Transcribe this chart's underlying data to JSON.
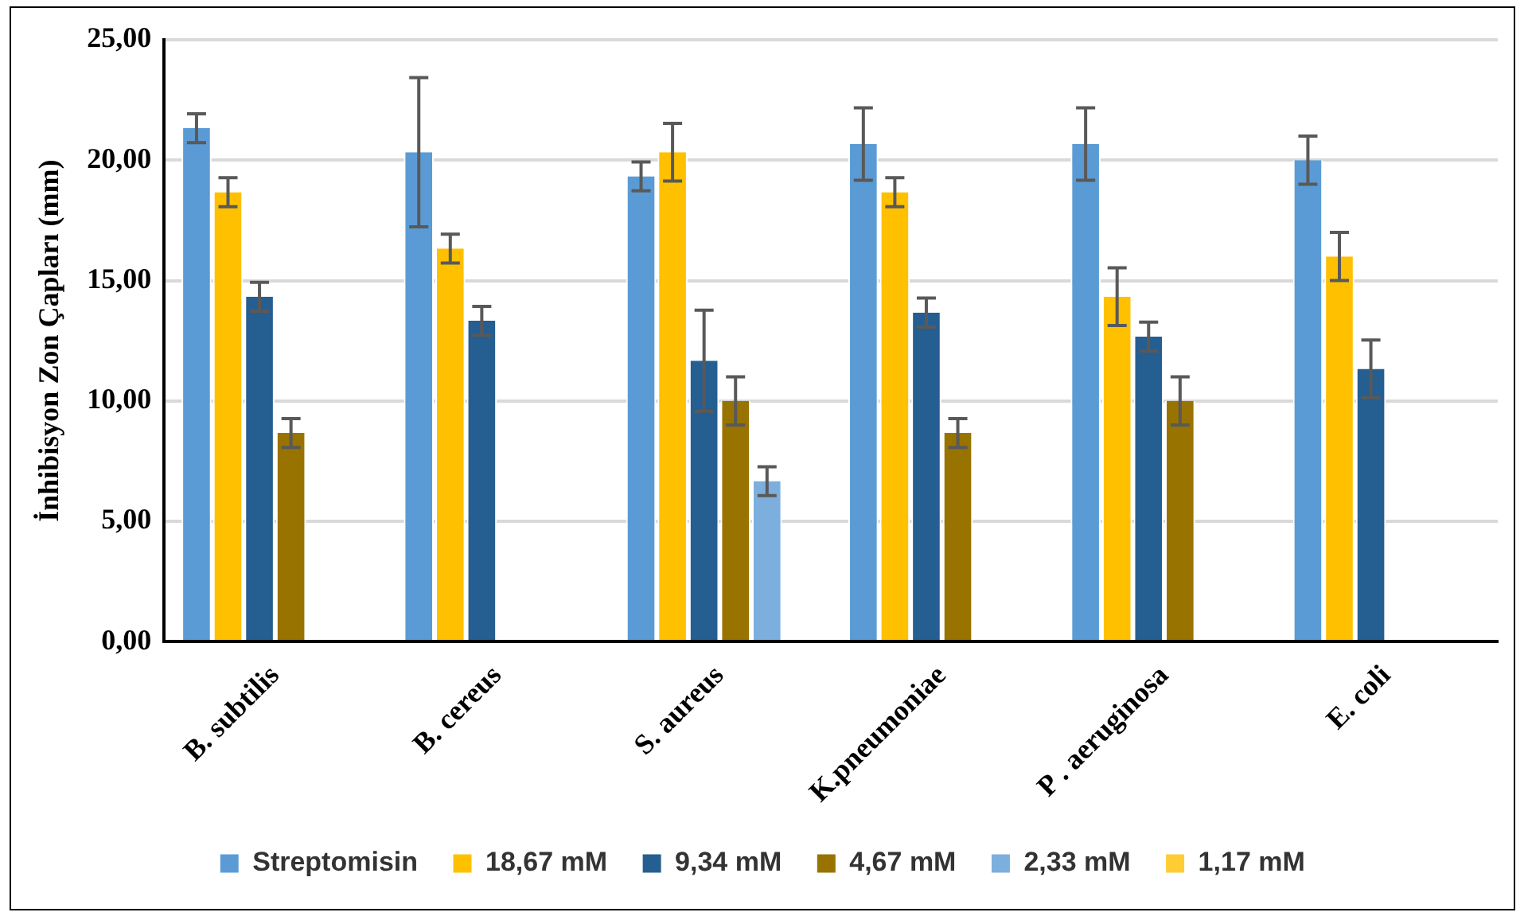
{
  "chart_data": {
    "type": "bar",
    "ylabel": "İnhibisyon Zon Çapları (mm)",
    "categories": [
      "B. subtilis",
      "B. cereus",
      "S. aureus",
      "K.pneumoniae",
      "P . aeruginosa",
      "E. coli"
    ],
    "series": [
      {
        "name": "Streptomisin",
        "color": "#5b9bd5",
        "values": [
          21.33,
          20.33,
          19.33,
          20.67,
          20.67,
          20
        ],
        "errors": [
          0.6,
          3.1,
          0.6,
          1.5,
          1.5,
          1
        ]
      },
      {
        "name": "18,67 mM",
        "color": "#ffc000",
        "values": [
          18.67,
          16.33,
          20.33,
          18.67,
          14.33,
          16
        ],
        "errors": [
          0.6,
          0.6,
          1.2,
          0.6,
          1.2,
          1
        ]
      },
      {
        "name": "9,34 mM",
        "color": "#255e91",
        "values": [
          14.33,
          13.33,
          11.67,
          13.67,
          12.67,
          11.33
        ],
        "errors": [
          0.6,
          0.6,
          2.1,
          0.6,
          0.6,
          1.2
        ]
      },
      {
        "name": "4,67 mM",
        "color": "#997300",
        "values": [
          8.67,
          0,
          10,
          8.67,
          10,
          0
        ],
        "errors": [
          0.6,
          null,
          1,
          0.6,
          1,
          null
        ]
      },
      {
        "name": "2,33 mM",
        "color": "#7cafdd",
        "values": [
          0,
          0,
          6.67,
          0,
          0,
          0
        ],
        "errors": [
          null,
          null,
          0.6,
          null,
          null,
          null
        ]
      },
      {
        "name": "1,17 mM",
        "color": "#ffcd33",
        "values": [
          0,
          0,
          0,
          0,
          0,
          0
        ]
      }
    ],
    "ylim": [
      0,
      25
    ],
    "yticks": [
      {
        "value": 0,
        "label": "0,00"
      },
      {
        "value": 5,
        "label": "5,00"
      },
      {
        "value": 10,
        "label": "10,00"
      },
      {
        "value": 15,
        "label": "15,00"
      },
      {
        "value": 20,
        "label": "20,00"
      },
      {
        "value": 25,
        "label": "25,00"
      }
    ],
    "grid": "y",
    "legend": "bottom"
  }
}
